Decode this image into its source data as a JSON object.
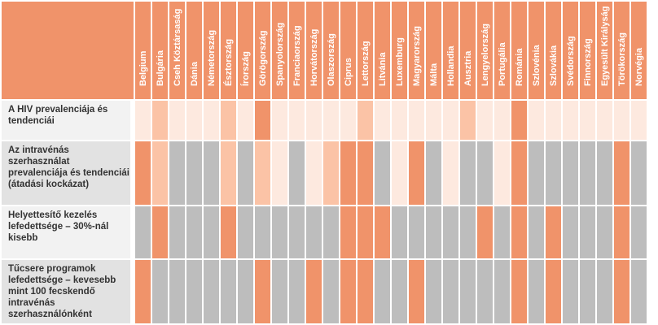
{
  "colors": {
    "high": "#f0936a",
    "medium": "#fbc3a6",
    "low": "#fde9df",
    "gray": "#bdbdbd",
    "header_bg": "#f0936a",
    "label_bg_light": "#f2f2f2",
    "label_bg_dark": "#e2e2e2"
  },
  "chart_data": {
    "type": "heatmap",
    "columns": [
      "Belgium",
      "Bulgária",
      "Cseh Köztársaság",
      "Dánia",
      "Németország",
      "Észtország",
      "Írország",
      "Görögország",
      "Spanyolország",
      "Franciaország",
      "Horvátország",
      "Olaszország",
      "Ciprus",
      "Lettország",
      "Litvánia",
      "Luxemburg",
      "Magyarország",
      "Málta",
      "Hollandia",
      "Ausztria",
      "Lengyelország",
      "Portugália",
      "Románia",
      "Szlovénia",
      "Szlovákia",
      "Svédország",
      "Finnország",
      "Egyesült Királyság",
      "Törökország",
      "Norvégia"
    ],
    "rows": [
      {
        "label": "A HIV prevalenciája és tendenciái",
        "values": [
          "L",
          "M",
          "L",
          "L",
          "L",
          "M",
          "L",
          "H",
          "L",
          "L",
          "L",
          "L",
          "L",
          "M",
          "L",
          "L",
          "L",
          "L",
          "L",
          "M",
          "L",
          "L",
          "H",
          "L",
          "L",
          "L",
          "L",
          "L",
          "L",
          "L"
        ]
      },
      {
        "label": "Az intravénás szerhasználat prevalenciája és tendenciái (átadási kockázat)",
        "values": [
          "H",
          "M",
          "G",
          "G",
          "G",
          "M",
          "G",
          "M",
          "L",
          "G",
          "L",
          "M",
          "H",
          "H",
          "G",
          "L",
          "H",
          "G",
          "L",
          "G",
          "G",
          "L",
          "H",
          "G",
          "G",
          "G",
          "G",
          "G",
          "H",
          "G"
        ]
      },
      {
        "label": "Helyettesítő kezelés lefedettsége – 30%-nál kisebb",
        "values": [
          "G",
          "H",
          "G",
          "G",
          "G",
          "H",
          "G",
          "G",
          "G",
          "G",
          "G",
          "G",
          "H",
          "H",
          "H",
          "G",
          "G",
          "G",
          "G",
          "G",
          "H",
          "G",
          "H",
          "G",
          "H",
          "G",
          "G",
          "G",
          "H",
          "G"
        ]
      },
      {
        "label": "Tűcsere programok lefedettsége – kevesebb mint 100 fecskendő intravénás szerhasználónként",
        "values": [
          "H",
          "G",
          "G",
          "G",
          "G",
          "G",
          "G",
          "H",
          "G",
          "G",
          "H",
          "G",
          "H",
          "H",
          "G",
          "G",
          "H",
          "G",
          "G",
          "G",
          "G",
          "G",
          "H",
          "G",
          "H",
          "G",
          "G",
          "G",
          "H",
          "G"
        ]
      }
    ]
  }
}
